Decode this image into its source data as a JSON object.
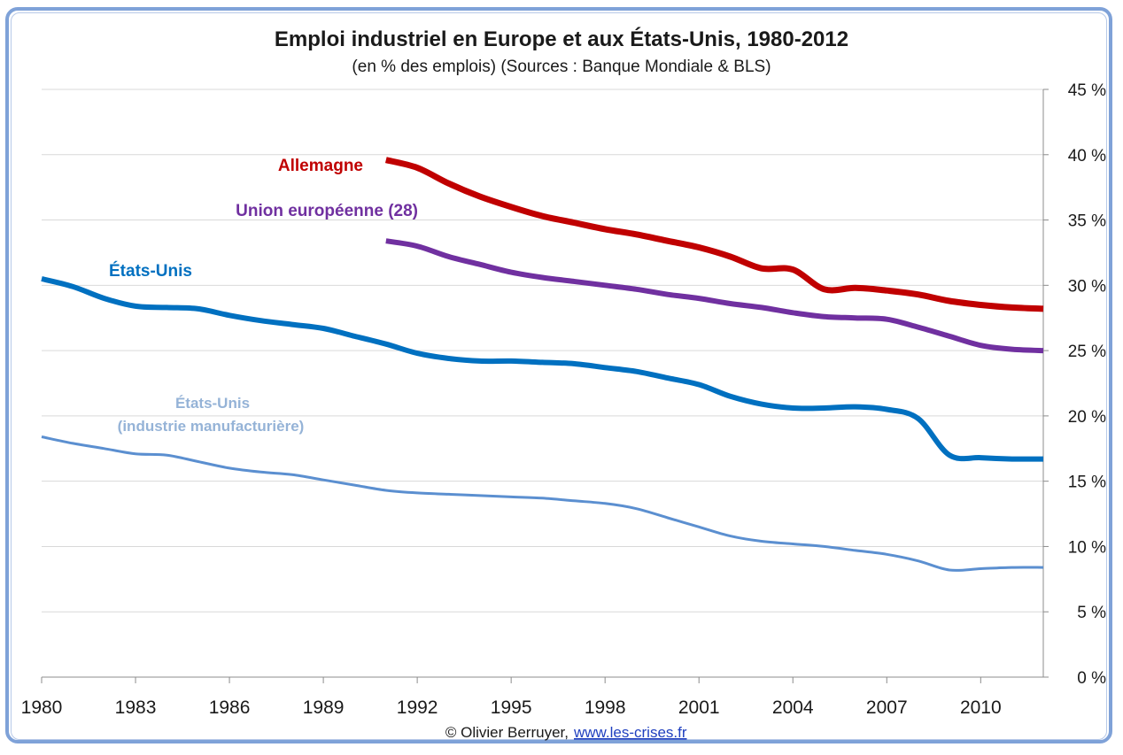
{
  "chart_data": {
    "type": "line",
    "title": "Emploi industriel en Europe et aux États-Unis, 1980-2012",
    "subtitle": "(en % des emplois) (Sources : Banque Mondiale & BLS)",
    "xlabel": "",
    "ylabel": "",
    "xlim": [
      1980,
      2012
    ],
    "ylim": [
      0,
      45
    ],
    "x_ticks": [
      "1980",
      "1983",
      "1986",
      "1989",
      "1992",
      "1995",
      "1998",
      "2001",
      "2004",
      "2007",
      "2010"
    ],
    "y_ticks": [
      "0 %",
      "5 %",
      "10 %",
      "15 %",
      "20 %",
      "25 %",
      "30 %",
      "35 %",
      "40 %",
      "45 %"
    ],
    "grid": true,
    "y_axis_position": "right",
    "series": [
      {
        "name": "Allemagne",
        "color": "#c00000",
        "x": [
          1991,
          1992,
          1993,
          1994,
          1995,
          1996,
          1997,
          1998,
          1999,
          2000,
          2001,
          2002,
          2003,
          2004,
          2005,
          2006,
          2007,
          2008,
          2009,
          2010,
          2011,
          2012
        ],
        "values": [
          39.6,
          39.0,
          37.8,
          36.8,
          36.0,
          35.3,
          34.8,
          34.3,
          33.9,
          33.4,
          32.9,
          32.2,
          31.3,
          31.2,
          29.7,
          29.8,
          29.6,
          29.3,
          28.8,
          28.5,
          28.3,
          28.2
        ]
      },
      {
        "name": "Union européenne (28)",
        "color": "#7030a0",
        "x": [
          1991,
          1992,
          1993,
          1994,
          1995,
          1996,
          1997,
          1998,
          1999,
          2000,
          2001,
          2002,
          2003,
          2004,
          2005,
          2006,
          2007,
          2008,
          2009,
          2010,
          2011,
          2012
        ],
        "values": [
          33.4,
          33.0,
          32.2,
          31.6,
          31.0,
          30.6,
          30.3,
          30.0,
          29.7,
          29.3,
          29.0,
          28.6,
          28.3,
          27.9,
          27.6,
          27.5,
          27.4,
          26.8,
          26.1,
          25.4,
          25.1,
          25.0
        ]
      },
      {
        "name": "États-Unis",
        "color": "#0070c0",
        "x": [
          1980,
          1981,
          1982,
          1983,
          1984,
          1985,
          1986,
          1987,
          1988,
          1989,
          1990,
          1991,
          1992,
          1993,
          1994,
          1995,
          1996,
          1997,
          1998,
          1999,
          2000,
          2001,
          2002,
          2003,
          2004,
          2005,
          2006,
          2007,
          2008,
          2009,
          2010,
          2011,
          2012
        ],
        "values": [
          30.5,
          29.9,
          29.0,
          28.4,
          28.3,
          28.2,
          27.7,
          27.3,
          27.0,
          26.7,
          26.1,
          25.5,
          24.8,
          24.4,
          24.2,
          24.2,
          24.1,
          24.0,
          23.7,
          23.4,
          22.9,
          22.4,
          21.5,
          20.9,
          20.6,
          20.6,
          20.7,
          20.5,
          19.8,
          17.0,
          16.8,
          16.7,
          16.7
        ]
      },
      {
        "name": "États-Unis (industrie manufacturière)",
        "label_line1": "États-Unis",
        "label_line2": "(industrie manufacturière)",
        "color": "#5b8fd0",
        "x": [
          1980,
          1981,
          1982,
          1983,
          1984,
          1985,
          1986,
          1987,
          1988,
          1989,
          1990,
          1991,
          1992,
          1993,
          1994,
          1995,
          1996,
          1997,
          1998,
          1999,
          2000,
          2001,
          2002,
          2003,
          2004,
          2005,
          2006,
          2007,
          2008,
          2009,
          2010,
          2011,
          2012
        ],
        "values": [
          18.4,
          17.9,
          17.5,
          17.1,
          17.0,
          16.5,
          16.0,
          15.7,
          15.5,
          15.1,
          14.7,
          14.3,
          14.1,
          14.0,
          13.9,
          13.8,
          13.7,
          13.5,
          13.3,
          12.9,
          12.2,
          11.5,
          10.8,
          10.4,
          10.2,
          10.0,
          9.7,
          9.4,
          8.9,
          8.2,
          8.3,
          8.4,
          8.4
        ]
      }
    ]
  },
  "footer": {
    "credit": "© Olivier Berruyer,",
    "link": "www.les-crises.fr"
  }
}
